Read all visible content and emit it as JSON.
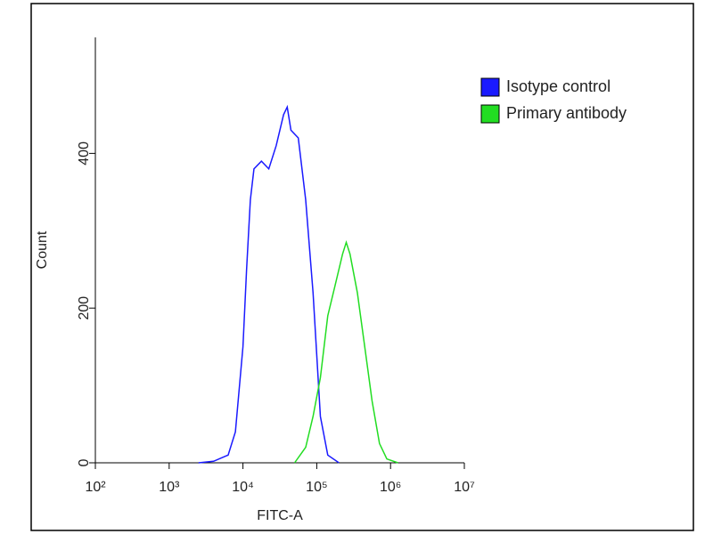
{
  "chart_data": {
    "type": "line",
    "x_label": "FITC-A",
    "y_label": "Count",
    "xscale": "log",
    "xlim": [
      100,
      10000000
    ],
    "xticks": [
      {
        "value": 100,
        "label": "10²"
      },
      {
        "value": 1000,
        "label": "10³"
      },
      {
        "value": 10000,
        "label": "10⁴"
      },
      {
        "value": 100000,
        "label": "10⁵"
      },
      {
        "value": 1000000,
        "label": "10⁶"
      },
      {
        "value": 10000000,
        "label": "10⁷"
      }
    ],
    "ylim": [
      0,
      550
    ],
    "yticks": [
      0,
      200,
      400
    ],
    "legend": "right",
    "series": [
      {
        "name": "Isotype control",
        "color": "#1a1aff",
        "x": [
          2500,
          4000,
          6300,
          7900,
          10000,
          11200,
          12600,
          14100,
          17800,
          22400,
          28200,
          35500,
          39800,
          44700,
          56200,
          70800,
          89100,
          112000,
          141000,
          200000
        ],
        "values": [
          0,
          2,
          10,
          40,
          150,
          250,
          340,
          380,
          390,
          380,
          410,
          450,
          460,
          430,
          420,
          340,
          220,
          60,
          10,
          0
        ]
      },
      {
        "name": "Primary antibody",
        "color": "#22dd22",
        "x": [
          50100,
          70800,
          89100,
          112000,
          141000,
          178000,
          224000,
          251000,
          282000,
          355000,
          447000,
          562000,
          708000,
          891000,
          1260000
        ],
        "values": [
          0,
          20,
          60,
          110,
          190,
          230,
          270,
          285,
          270,
          220,
          150,
          80,
          25,
          5,
          0
        ]
      }
    ]
  }
}
